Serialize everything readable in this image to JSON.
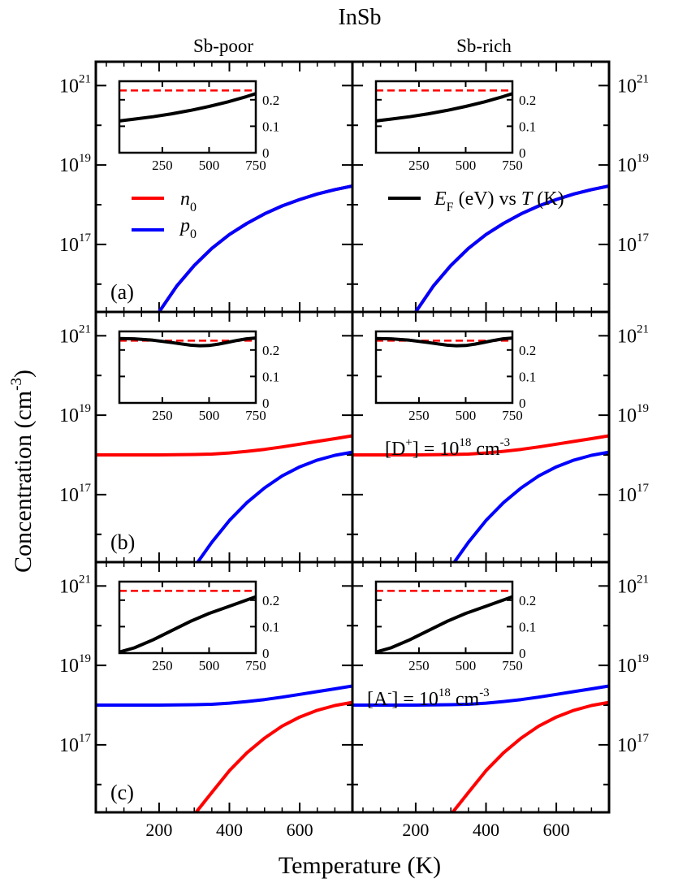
{
  "figure": {
    "title": "InSb",
    "column_titles": [
      "Sb-poor",
      "Sb-rich"
    ],
    "xlabel": "Temperature (K)",
    "ylabel": {
      "base": "Concentration (cm",
      "sup": "-3",
      "tail": ")"
    },
    "colors": {
      "n0": "#ff0000",
      "p0": "#0000ff",
      "ef": "#000000",
      "gap": "#ff0000",
      "axis": "#000000"
    }
  },
  "legend": {
    "n0": {
      "main": "n",
      "sub": "0"
    },
    "p0": {
      "main": "p",
      "sub": "0"
    },
    "ef": {
      "E": "E",
      "F": "F",
      "mid": " (eV) vs ",
      "T": "T",
      "end": " (K)"
    }
  },
  "annotations": {
    "donor": {
      "pre": "[D",
      "sup1": "+",
      "mid": "] = 10",
      "sup2": "18",
      "unit": " cm",
      "sup3": "-3"
    },
    "acceptor": {
      "pre": "[A",
      "sup1": "-",
      "mid": "] = 10",
      "sup2": "18",
      "unit": " cm",
      "sup3": "-3"
    }
  },
  "chart_data": {
    "type": "line",
    "xlim": [
      20,
      750
    ],
    "ylim_log10": [
      15.3,
      21.6
    ],
    "x_ticks": [
      200,
      400,
      600
    ],
    "x_tick_labels": [
      "200",
      "400",
      "600"
    ],
    "y_ticks_log10": [
      17,
      19,
      21
    ],
    "y_tick_labels": [
      {
        "base": "10",
        "exp": "17"
      },
      {
        "base": "10",
        "exp": "19"
      },
      {
        "base": "10",
        "exp": "21"
      }
    ],
    "inset": {
      "xlim": [
        20,
        750
      ],
      "ylim": [
        0,
        0.27
      ],
      "x_ticks": [
        250,
        500,
        750
      ],
      "x_tick_labels": [
        "250",
        "500",
        "750"
      ],
      "y_ticks": [
        0,
        0.1,
        0.2
      ],
      "y_tick_labels": [
        "0",
        "0.1",
        "0.2"
      ],
      "band_gap_eV": 0.235
    },
    "panels": [
      {
        "label": "(a)",
        "series": [
          {
            "name": "n0",
            "x": [
              200,
              250,
              300,
              350,
              400,
              450,
              500,
              550,
              600,
              650,
              700,
              750
            ],
            "log10": [
              15.3,
              15.95,
              16.47,
              16.9,
              17.25,
              17.53,
              17.77,
              17.97,
              18.13,
              18.27,
              18.38,
              18.47
            ]
          },
          {
            "name": "p0",
            "x": [
              200,
              250,
              300,
              350,
              400,
              450,
              500,
              550,
              600,
              650,
              700,
              750
            ],
            "log10": [
              15.3,
              15.95,
              16.47,
              16.9,
              17.25,
              17.53,
              17.77,
              17.97,
              18.13,
              18.27,
              18.38,
              18.47
            ]
          }
        ],
        "ef": {
          "x": [
            20,
            100,
            200,
            300,
            400,
            500,
            600,
            700,
            750
          ],
          "y": [
            0.12,
            0.127,
            0.136,
            0.147,
            0.16,
            0.175,
            0.192,
            0.212,
            0.223
          ]
        }
      },
      {
        "label": "(b)",
        "series": [
          {
            "name": "n0",
            "x": [
              20,
              100,
              200,
              300,
              350,
              400,
              450,
              500,
              550,
              600,
              650,
              700,
              750
            ],
            "log10": [
              18.0,
              18.0,
              18.0,
              18.01,
              18.02,
              18.05,
              18.09,
              18.14,
              18.2,
              18.27,
              18.34,
              18.41,
              18.48
            ]
          },
          {
            "name": "p0",
            "x": [
              310,
              350,
              400,
              450,
              500,
              550,
              600,
              650,
              700,
              750
            ],
            "log10": [
              15.3,
              15.8,
              16.35,
              16.8,
              17.17,
              17.47,
              17.7,
              17.87,
              17.99,
              18.07
            ]
          }
        ],
        "ef": {
          "x": [
            20,
            100,
            200,
            300,
            400,
            450,
            500,
            550,
            600,
            650,
            700,
            750
          ],
          "y": [
            0.243,
            0.242,
            0.237,
            0.228,
            0.218,
            0.216,
            0.217,
            0.222,
            0.229,
            0.236,
            0.242,
            0.245
          ]
        }
      },
      {
        "label": "(c)",
        "series": [
          {
            "name": "n0",
            "x": [
              305,
              350,
              400,
              450,
              500,
              550,
              600,
              650,
              700,
              750
            ],
            "log10": [
              15.3,
              15.8,
              16.35,
              16.8,
              17.17,
              17.47,
              17.7,
              17.87,
              17.99,
              18.07
            ]
          },
          {
            "name": "p0",
            "x": [
              20,
              100,
              200,
              300,
              350,
              400,
              450,
              500,
              550,
              600,
              650,
              700,
              750
            ],
            "log10": [
              18.0,
              18.0,
              18.0,
              18.01,
              18.02,
              18.05,
              18.09,
              18.14,
              18.2,
              18.27,
              18.34,
              18.41,
              18.48
            ]
          }
        ],
        "ef": {
          "x": [
            20,
            100,
            200,
            300,
            400,
            500,
            600,
            700,
            750
          ],
          "y": [
            0.004,
            0.02,
            0.05,
            0.085,
            0.12,
            0.15,
            0.175,
            0.2,
            0.213
          ]
        }
      }
    ]
  }
}
